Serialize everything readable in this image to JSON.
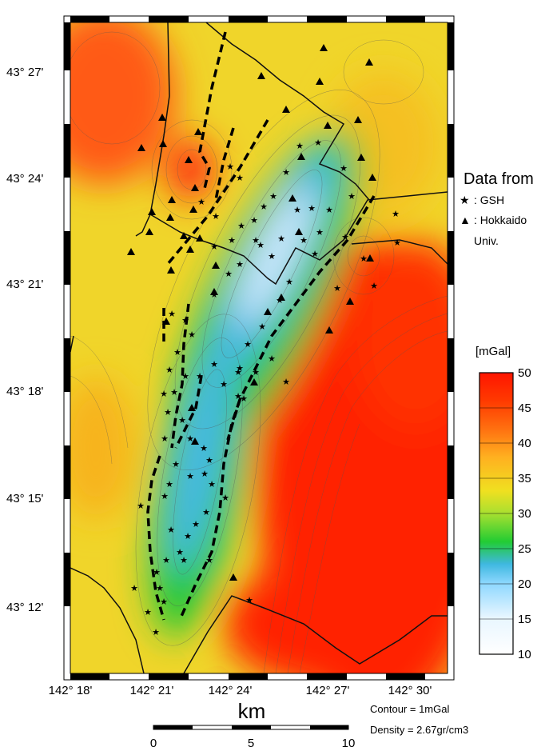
{
  "map": {
    "lat_labels": [
      "43° 27'",
      "43° 24'",
      "43° 21'",
      "43° 18'",
      "43° 15'",
      "43° 12'"
    ],
    "lon_labels": [
      "142° 18'",
      "142° 21'",
      "142° 24'",
      "142° 27'",
      "142° 30'"
    ]
  },
  "legend": {
    "title": "Data from",
    "items": [
      {
        "symbol": "★",
        "label": ": GSH"
      },
      {
        "symbol": "▲",
        "label": ": Hokkaido"
      },
      {
        "symbol": "",
        "label": "Univ."
      }
    ]
  },
  "colorbar": {
    "unit": "[mGal]",
    "ticks": [
      "50",
      "45",
      "40",
      "35",
      "30",
      "25",
      "20",
      "15",
      "10"
    ],
    "range": [
      10,
      50
    ],
    "colors": [
      "#ffffff",
      "#8fd8ff",
      "#3fb8e0",
      "#22cc33",
      "#f0e020",
      "#ff9900",
      "#ff2200"
    ]
  },
  "scalebar": {
    "unit": "km",
    "ticks": [
      "0",
      "5",
      "10"
    ]
  },
  "notes": {
    "contour": "Contour = 1mGal",
    "density": "Density = 2.67gr/cm3"
  }
}
